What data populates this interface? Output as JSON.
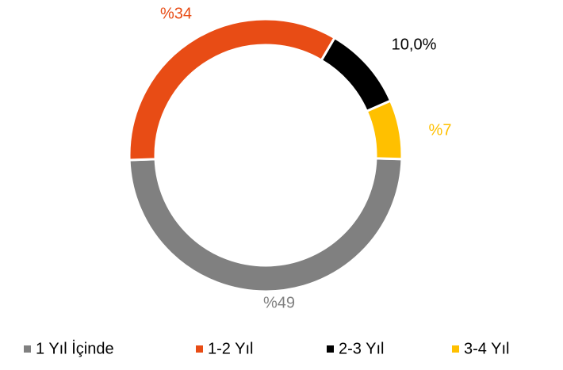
{
  "chart_data": {
    "type": "donut",
    "categories": [
      "1 Yıl İçinde",
      "1-2 Yıl",
      "2-3 Yıl",
      "3-4 Yıl"
    ],
    "values": [
      49,
      34,
      10,
      7
    ],
    "value_labels": [
      "%49",
      "%34",
      "10,0%",
      "%7"
    ],
    "colors": [
      "#808080",
      "#e84c15",
      "#000000",
      "#ffc000"
    ]
  }
}
